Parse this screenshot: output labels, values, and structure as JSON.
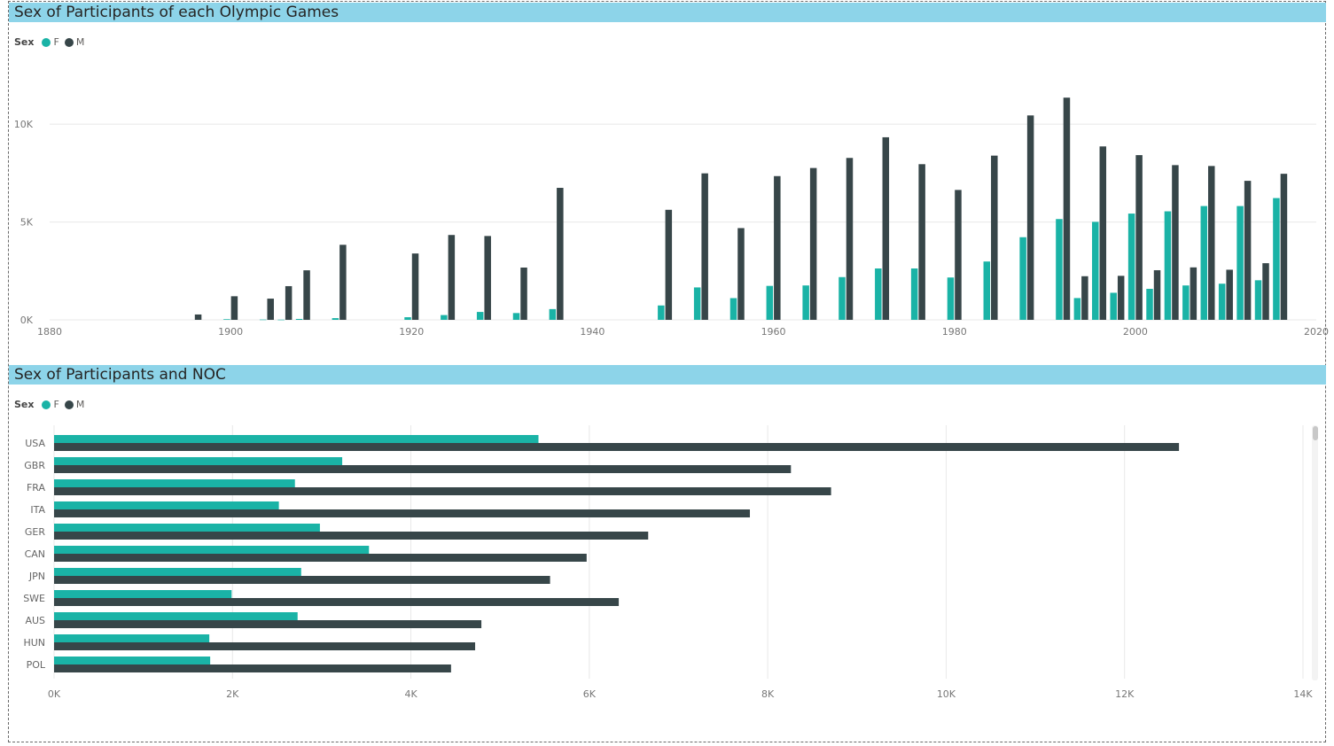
{
  "colors": {
    "F": "#1ab3a6",
    "M": "#374649",
    "header_bg": "#8dd4e9",
    "grid": "#e8e8e8",
    "axis_text": "#777777"
  },
  "chart_data": [
    {
      "type": "bar",
      "title": "Sex of Participants of each Olympic Games",
      "legend_title": "Sex",
      "legend_position": "top-left",
      "xlabel": "",
      "ylabel": "",
      "xlim": [
        1880,
        2020
      ],
      "x_ticks": [
        "1880",
        "1900",
        "1920",
        "1940",
        "1960",
        "1980",
        "2000",
        "2020"
      ],
      "ylim": [
        0,
        12000
      ],
      "y_ticks": [
        "0K",
        "5K",
        "10K"
      ],
      "grid": true,
      "x": [
        1896,
        1900,
        1904,
        1906,
        1908,
        1912,
        1920,
        1924,
        1928,
        1932,
        1936,
        1948,
        1952,
        1956,
        1960,
        1964,
        1968,
        1972,
        1976,
        1980,
        1984,
        1988,
        1992,
        1994,
        1996,
        1998,
        2000,
        2002,
        2004,
        2006,
        2008,
        2010,
        2012,
        2014,
        2016
      ],
      "series": [
        {
          "name": "F",
          "values": [
            0,
            33,
            16,
            11,
            47,
            87,
            134,
            244,
            404,
            347,
            549,
            735,
            1657,
            1110,
            1735,
            1757,
            2184,
            2626,
            2626,
            2164,
            2981,
            4223,
            5151,
            1113,
            5008,
            1383,
            5431,
            1584,
            5546,
            1757,
            5816,
            1847,
            5815,
            2023,
            6223
          ]
        },
        {
          "name": "M",
          "values": [
            274,
            1206,
            1084,
            1722,
            2532,
            3835,
            3391,
            4337,
            4285,
            2672,
            6746,
            5624,
            7487,
            4689,
            7346,
            7760,
            8275,
            9331,
            7956,
            6639,
            8393,
            10448,
            11356,
            2229,
            8864,
            2249,
            8419,
            2536,
            7908,
            2681,
            7863,
            2561,
            7105,
            2895,
            7465
          ]
        }
      ]
    },
    {
      "type": "bar",
      "orientation": "horizontal",
      "title": "Sex of Participants and NOC",
      "legend_title": "Sex",
      "legend_position": "top-left",
      "xlabel": "",
      "ylabel": "",
      "xlim": [
        0,
        14000
      ],
      "x_ticks": [
        "0K",
        "2K",
        "4K",
        "6K",
        "8K",
        "10K",
        "12K",
        "14K"
      ],
      "grid": true,
      "categories": [
        "USA",
        "GBR",
        "FRA",
        "ITA",
        "GER",
        "CAN",
        "JPN",
        "SWE",
        "AUS",
        "HUN",
        "POL"
      ],
      "series": [
        {
          "name": "F",
          "values": [
            5430,
            3230,
            2700,
            2520,
            2980,
            3530,
            2770,
            1990,
            2730,
            1740,
            1750
          ]
        },
        {
          "name": "M",
          "values": [
            12610,
            8260,
            8710,
            7800,
            6660,
            5970,
            5560,
            6330,
            4790,
            4720,
            4450
          ]
        }
      ]
    }
  ]
}
